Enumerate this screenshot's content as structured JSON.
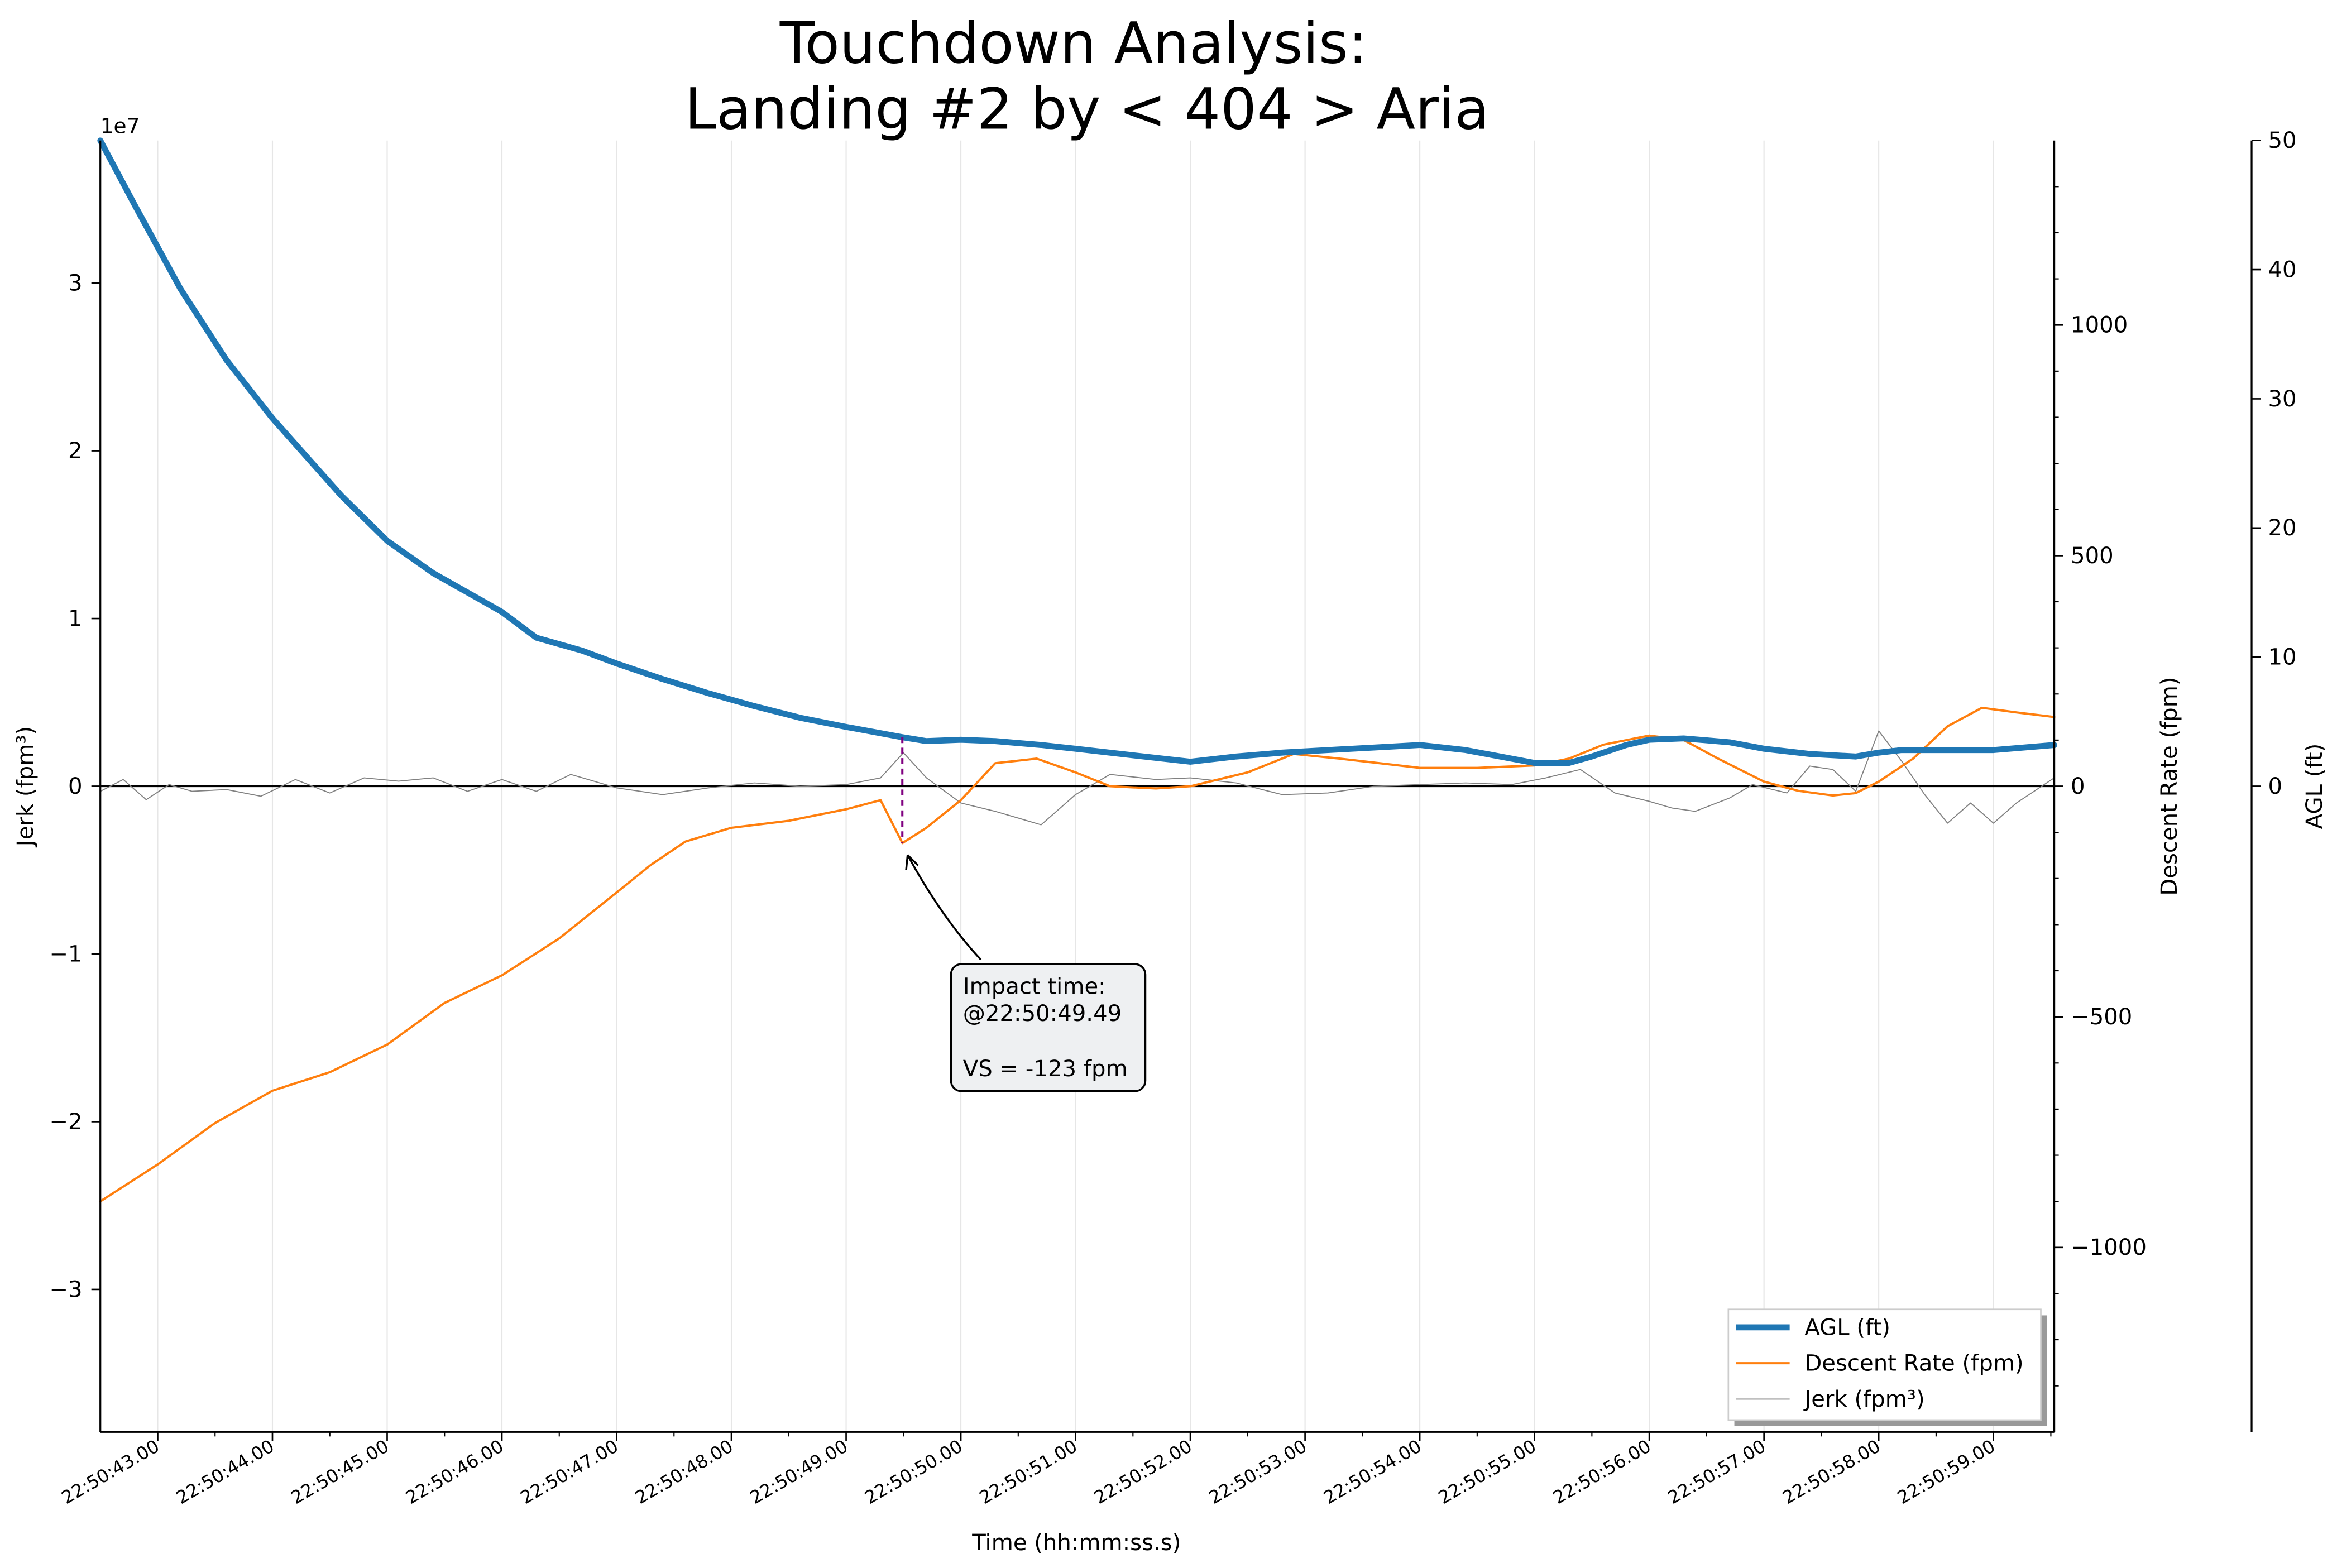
{
  "chart_data": {
    "type": "line",
    "title_line1": "Touchdown Analysis:",
    "title_line2": "Landing #2 by < 404 > Aria",
    "xlabel": "Time (hh:mm:ss.s)",
    "x_start": "22:50:42.50",
    "x_end": "22:50:59.53",
    "x_ticks": [
      "22:50:43.00",
      "22:50:44.00",
      "22:50:45.00",
      "22:50:46.00",
      "22:50:47.00",
      "22:50:48.00",
      "22:50:49.00",
      "22:50:50.00",
      "22:50:51.00",
      "22:50:52.00",
      "22:50:53.00",
      "22:50:54.00",
      "22:50:55.00",
      "22:50:56.00",
      "22:50:57.00",
      "22:50:58.00",
      "22:50:59.00"
    ],
    "axes": {
      "jerk": {
        "label": "Jerk (fpm³)",
        "exponent_label": "1e7",
        "ylim": [
          -38500000,
          38500000
        ],
        "ticks": [
          -30000000,
          -20000000,
          -10000000,
          0,
          10000000,
          20000000,
          30000000
        ],
        "tick_labels": [
          "−3",
          "−2",
          "−1",
          "0",
          "1",
          "2",
          "3"
        ]
      },
      "descent": {
        "label": "Descent Rate (fpm)",
        "ylim": [
          -1400,
          1400
        ],
        "ticks": [
          -1000,
          -500,
          0,
          500,
          1000
        ],
        "tick_labels": [
          "−1000",
          "−500",
          "0",
          "500",
          "1000"
        ]
      },
      "agl": {
        "label": "AGL (ft)",
        "ylim": [
          -50,
          50
        ],
        "ticks": [
          0,
          10,
          20,
          30,
          40,
          50
        ],
        "tick_labels": [
          "0",
          "10",
          "20",
          "30",
          "40",
          "50"
        ]
      }
    },
    "series": [
      {
        "name": "AGL (ft)",
        "axis": "agl",
        "color": "#1f77b4",
        "x": [
          "22:50:42.50",
          "22:50:42.80",
          "22:50:43.20",
          "22:50:43.60",
          "22:50:44.00",
          "22:50:44.30",
          "22:50:44.60",
          "22:50:45.00",
          "22:50:45.40",
          "22:50:45.80",
          "22:50:46.00",
          "22:50:46.30",
          "22:50:46.70",
          "22:50:47.00",
          "22:50:47.40",
          "22:50:47.80",
          "22:50:48.20",
          "22:50:48.60",
          "22:50:49.00",
          "22:50:49.49",
          "22:50:49.70",
          "22:50:50.00",
          "22:50:50.30",
          "22:50:50.70",
          "22:50:51.00",
          "22:50:51.50",
          "22:50:52.00",
          "22:50:52.40",
          "22:50:52.80",
          "22:50:53.20",
          "22:50:53.60",
          "22:50:54.00",
          "22:50:54.40",
          "22:50:55.00",
          "22:50:55.30",
          "22:50:55.50",
          "22:50:55.80",
          "22:50:56.00",
          "22:50:56.30",
          "22:50:56.70",
          "22:50:57.00",
          "22:50:57.40",
          "22:50:57.80",
          "22:50:58.00",
          "22:50:58.20",
          "22:50:58.60",
          "22:50:59.00",
          "22:50:59.53"
        ],
        "values": [
          50,
          45,
          38.5,
          33,
          28.5,
          25.5,
          22.5,
          19,
          16.5,
          14.5,
          13.5,
          11.5,
          10.5,
          9.5,
          8.3,
          7.2,
          6.2,
          5.3,
          4.6,
          3.8,
          3.5,
          3.6,
          3.5,
          3.2,
          2.9,
          2.4,
          1.9,
          2.3,
          2.6,
          2.8,
          3.0,
          3.2,
          2.8,
          1.8,
          1.8,
          2.3,
          3.2,
          3.6,
          3.7,
          3.4,
          2.9,
          2.5,
          2.3,
          2.6,
          2.8,
          2.8,
          2.8,
          3.2
        ]
      },
      {
        "name": "Descent Rate (fpm)",
        "axis": "descent",
        "color": "#ff7f0e",
        "x": [
          "22:50:42.50",
          "22:50:43.00",
          "22:50:43.50",
          "22:50:44.00",
          "22:50:44.50",
          "22:50:45.00",
          "22:50:45.50",
          "22:50:46.00",
          "22:50:46.50",
          "22:50:47.00",
          "22:50:47.30",
          "22:50:47.60",
          "22:50:48.00",
          "22:50:48.50",
          "22:50:49.00",
          "22:50:49.30",
          "22:50:49.49",
          "22:50:49.70",
          "22:50:50.00",
          "22:50:50.30",
          "22:50:50.66",
          "22:50:51.00",
          "22:50:51.30",
          "22:50:51.70",
          "22:50:52.00",
          "22:50:52.50",
          "22:50:52.90",
          "22:50:53.30",
          "22:50:54.00",
          "22:50:54.50",
          "22:50:55.00",
          "22:50:55.30",
          "22:50:55.60",
          "22:50:56.00",
          "22:50:56.30",
          "22:50:56.60",
          "22:50:57.00",
          "22:50:57.30",
          "22:50:57.60",
          "22:50:57.80",
          "22:50:58.00",
          "22:50:58.30",
          "22:50:58.60",
          "22:50:58.90",
          "22:50:59.20",
          "22:50:59.53"
        ],
        "values": [
          -900,
          -820,
          -730,
          -660,
          -620,
          -560,
          -470,
          -410,
          -330,
          -230,
          -170,
          -120,
          -90,
          -75,
          -50,
          -30,
          -123,
          -90,
          -30,
          50,
          60,
          30,
          0,
          -5,
          0,
          30,
          70,
          60,
          40,
          40,
          45,
          60,
          90,
          110,
          100,
          60,
          10,
          -10,
          -20,
          -15,
          10,
          60,
          130,
          170,
          160,
          150
        ]
      },
      {
        "name": "Jerk (fpm³)",
        "axis": "jerk",
        "color": "#808080",
        "x": [
          "22:50:42.50",
          "22:50:42.70",
          "22:50:42.90",
          "22:50:43.10",
          "22:50:43.30",
          "22:50:43.60",
          "22:50:43.90",
          "22:50:44.20",
          "22:50:44.50",
          "22:50:44.80",
          "22:50:45.10",
          "22:50:45.40",
          "22:50:45.70",
          "22:50:46.00",
          "22:50:46.30",
          "22:50:46.60",
          "22:50:47.00",
          "22:50:47.40",
          "22:50:47.80",
          "22:50:48.20",
          "22:50:48.60",
          "22:50:49.00",
          "22:50:49.30",
          "22:50:49.50",
          "22:50:49.70",
          "22:50:50.00",
          "22:50:50.30",
          "22:50:50.50",
          "22:50:50.70",
          "22:50:51.00",
          "22:50:51.30",
          "22:50:51.70",
          "22:50:52.00",
          "22:50:52.40",
          "22:50:52.80",
          "22:50:53.20",
          "22:50:53.60",
          "22:50:54.00",
          "22:50:54.40",
          "22:50:54.80",
          "22:50:55.10",
          "22:50:55.40",
          "22:50:55.70",
          "22:50:56.00",
          "22:50:56.20",
          "22:50:56.40",
          "22:50:56.70",
          "22:50:56.90",
          "22:50:57.20",
          "22:50:57.40",
          "22:50:57.60",
          "22:50:57.80",
          "22:50:58.00",
          "22:50:58.20",
          "22:50:58.40",
          "22:50:58.60",
          "22:50:58.80",
          "22:50:59.00",
          "22:50:59.20",
          "22:50:59.53"
        ],
        "values": [
          -300000,
          400000,
          -800000,
          100000,
          -300000,
          -200000,
          -600000,
          400000,
          -400000,
          500000,
          300000,
          500000,
          -300000,
          400000,
          -300000,
          700000,
          -100000,
          -500000,
          -100000,
          200000,
          0,
          100000,
          500000,
          2000000,
          500000,
          -1000000,
          -1500000,
          -1900000,
          -2300000,
          -500000,
          700000,
          400000,
          500000,
          200000,
          -500000,
          -400000,
          0,
          100000,
          200000,
          100000,
          500000,
          1000000,
          -400000,
          -900000,
          -1300000,
          -1500000,
          -700000,
          100000,
          -400000,
          1200000,
          1000000,
          -300000,
          3300000,
          1500000,
          -500000,
          -2200000,
          -1000000,
          -2200000,
          -1000000,
          500000
        ]
      }
    ],
    "legend": {
      "position": "bottom-right",
      "entries": [
        "AGL (ft)",
        "Descent Rate (fpm)",
        "Jerk (fpm³)"
      ]
    },
    "annotation": {
      "x": "22:50:49.49",
      "descent_value": -123,
      "line1": "Impact time:",
      "line2": "@22:50:49.49",
      "line3": "VS = -123 fpm",
      "marker_color": "#800080"
    },
    "grid": "vertical",
    "zero_line": true
  }
}
